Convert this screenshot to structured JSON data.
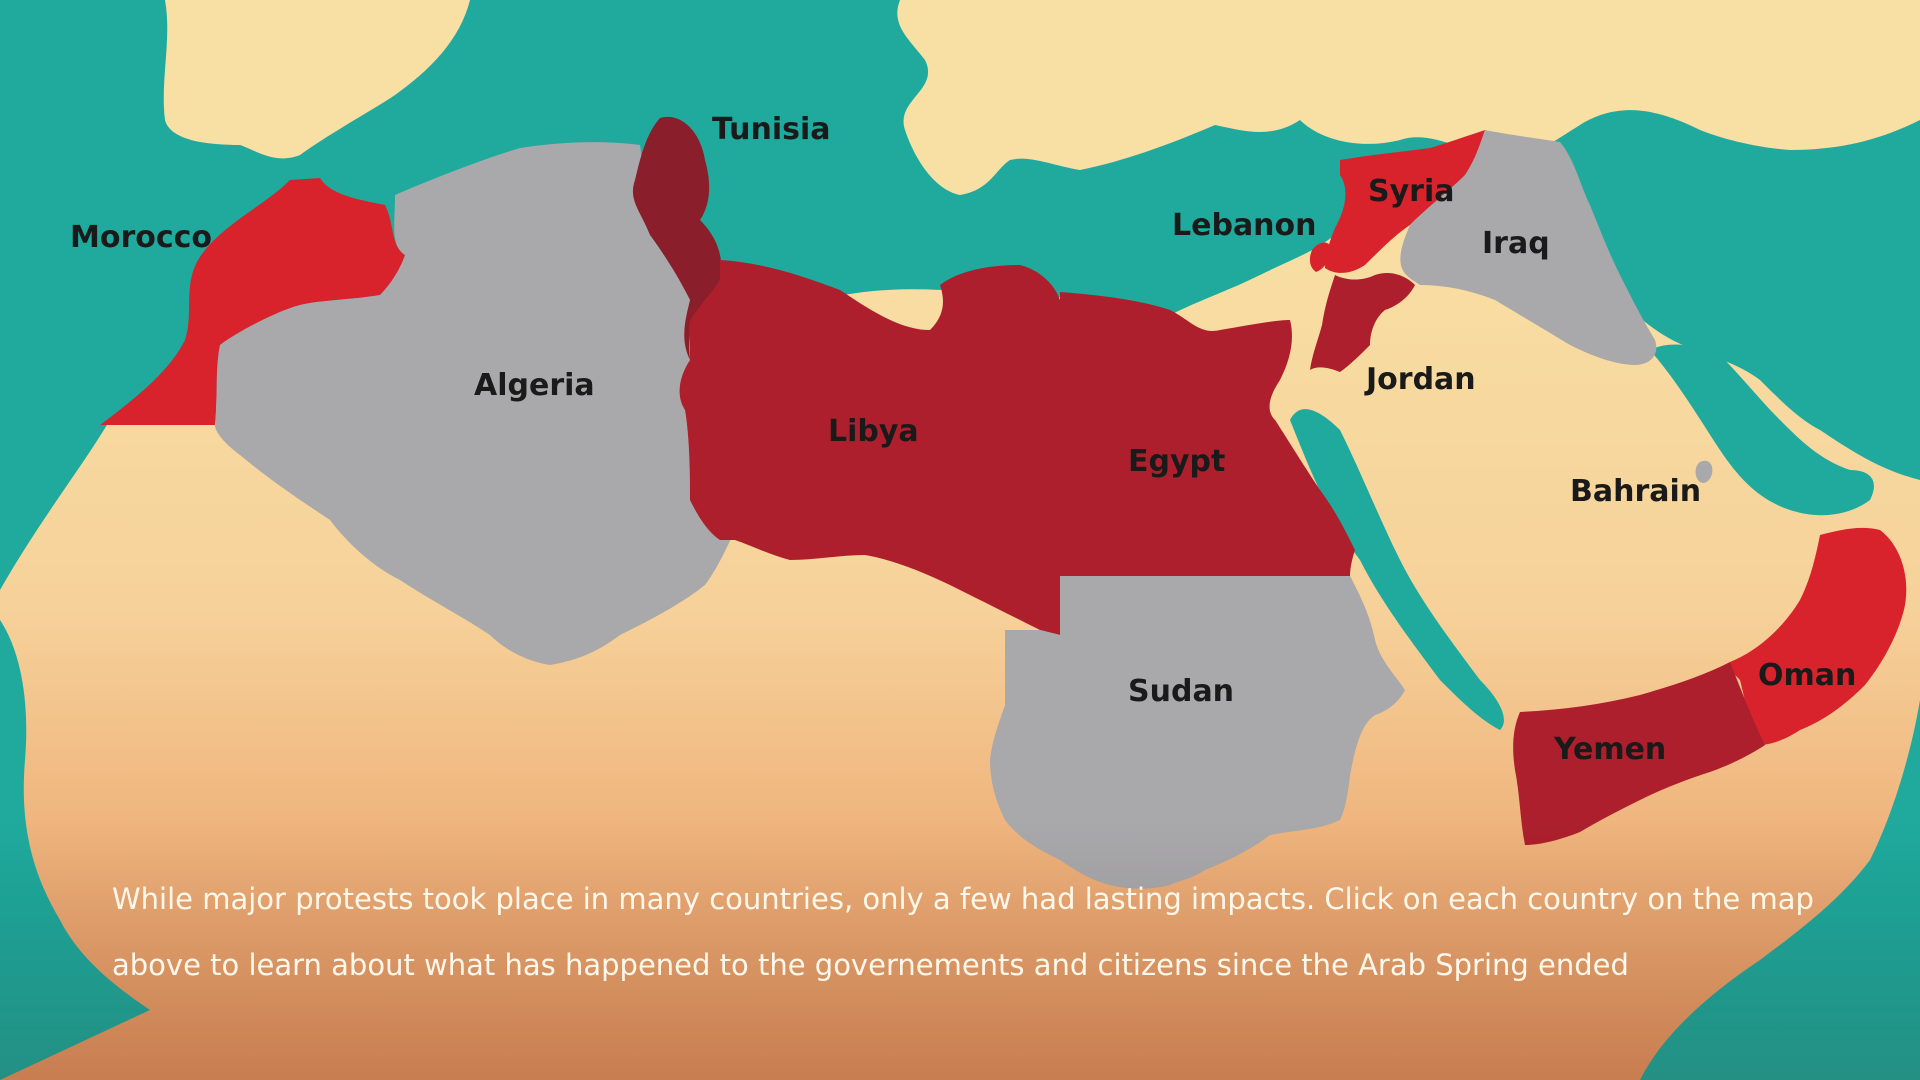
{
  "colors": {
    "sea": "#1faa9d",
    "land_light": "#f8dfa4",
    "land_dark": "#e8935e",
    "protest_red": "#d8232c",
    "lasting_impact_dark_red": "#ad1f2c",
    "tunisia_darkest": "#8a1e2a",
    "no_major_change_gray": "#a9a8ab",
    "label_text": "#1a1a1a",
    "caption_text": "#fff8ea"
  },
  "countries": {
    "morocco": "Morocco",
    "tunisia": "Tunisia",
    "algeria": "Algeria",
    "libya": "Libya",
    "egypt": "Egypt",
    "sudan": "Sudan",
    "lebanon": "Lebanon",
    "syria": "Syria",
    "iraq": "Iraq",
    "jordan": "Jordan",
    "bahrain": "Bahrain",
    "oman": "Oman",
    "yemen": "Yemen"
  },
  "caption": "While major protests took place in many countries, only a few had lasting impacts. Click on each country on the map above to learn about what has happened to the governements and citizens since the Arab Spring ended"
}
